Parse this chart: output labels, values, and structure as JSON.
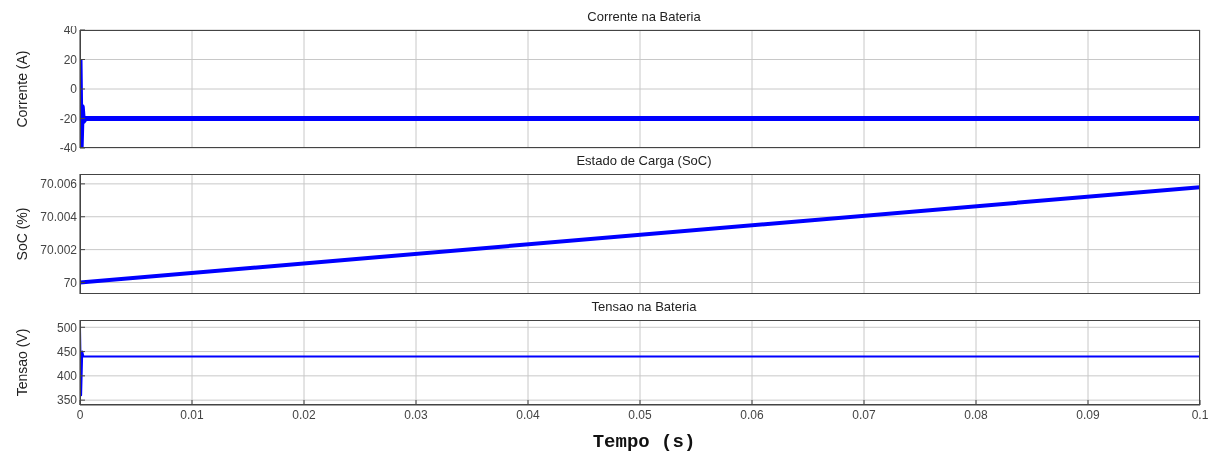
{
  "chart_data": [
    {
      "type": "line",
      "title": "Corrente na Bateria",
      "ylabel": "Corrente (A)",
      "xlim": [
        0,
        0.1
      ],
      "xticks": [
        0,
        0.01,
        0.02,
        0.03,
        0.04,
        0.05,
        0.06,
        0.07,
        0.08,
        0.09,
        0.1
      ],
      "ylim": [
        -40,
        40
      ],
      "yticks": [
        -40,
        -20,
        0,
        20,
        40
      ],
      "grid": true,
      "tick_labels": "y",
      "series": [
        {
          "color": "#0000ff",
          "x": [
            0,
            0.0001,
            0.0002,
            0.0003,
            0.0005,
            0.1
          ],
          "values": [
            20,
            -40,
            -12,
            -22,
            -20,
            -20
          ]
        }
      ]
    },
    {
      "type": "line",
      "title": "Estado de Carga (SoC)",
      "ylabel": "SoC (%)",
      "xlim": [
        0,
        0.1
      ],
      "xticks": [
        0,
        0.01,
        0.02,
        0.03,
        0.04,
        0.05,
        0.06,
        0.07,
        0.08,
        0.09,
        0.1
      ],
      "ylim": [
        69.9993,
        70.0066
      ],
      "yticks": [
        70,
        70.002,
        70.004,
        70.006
      ],
      "grid": true,
      "tick_labels": "y",
      "series": [
        {
          "color": "#0000ff",
          "x": [
            0,
            0.1
          ],
          "values": [
            70,
            70.0058
          ]
        }
      ]
    },
    {
      "type": "line",
      "title": "Tensao na Bateria",
      "ylabel": "Tensao (V)",
      "xlabel": "Tempo (s)",
      "xlim": [
        0,
        0.1
      ],
      "xticks": [
        0,
        0.01,
        0.02,
        0.03,
        0.04,
        0.05,
        0.06,
        0.07,
        0.08,
        0.09,
        0.1
      ],
      "ylim": [
        340,
        515
      ],
      "yticks": [
        350,
        400,
        450,
        500
      ],
      "grid": true,
      "series": [
        {
          "color": "#0000ff",
          "x": [
            0,
            0.0001,
            0.0002,
            0.0003,
            0.1
          ],
          "values": [
            500,
            360,
            450,
            440,
            440
          ]
        }
      ]
    }
  ]
}
